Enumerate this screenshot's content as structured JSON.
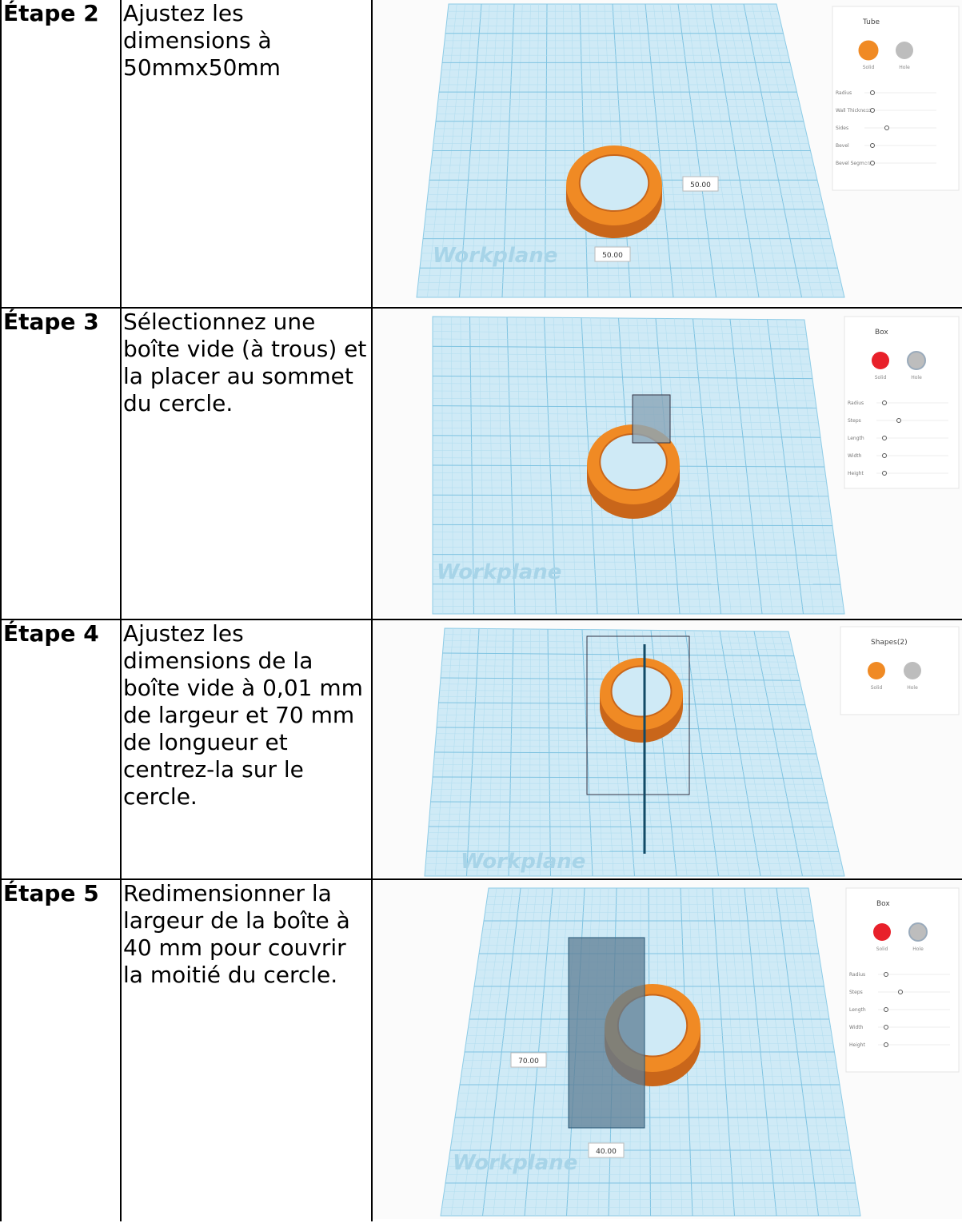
{
  "table": {
    "rows": [
      {
        "step": "Étape 2",
        "instruction": "Ajustez les dimensions à 50mmx50mm",
        "screenshot": {
          "panel_title": "Tube",
          "mode_labels": [
            "Solid",
            "Hole"
          ],
          "properties": [
            "Radius",
            "Wall Thickness",
            "Sides",
            "Bevel",
            "Bevel Segments"
          ],
          "dimensions": [
            "50.00",
            "50.00"
          ],
          "workplane": "Workplane"
        }
      },
      {
        "step": "Étape 3",
        "instruction": "Sélectionnez une boîte vide (à trous) et la placer au sommet du cercle.",
        "screenshot": {
          "panel_title": "Box",
          "mode_labels": [
            "Solid",
            "Hole"
          ],
          "properties": [
            "Radius",
            "Steps",
            "Length",
            "Width",
            "Height"
          ],
          "dimensions": [],
          "workplane": "Workplane"
        }
      },
      {
        "step": "Étape 4",
        "instruction": "Ajustez les dimensions de la boîte vide à 0,01 mm de largeur et 70 mm de longueur et centrez-la sur le cercle.",
        "screenshot": {
          "panel_title": "Shapes(2)",
          "mode_labels": [
            "Solid",
            "Hole"
          ],
          "properties": [],
          "dimensions": [],
          "workplane": "Workplane"
        }
      },
      {
        "step": "Étape 5",
        "instruction": "Redimensionner la largeur de la boîte à 40 mm pour couvrir la moitié du cercle.",
        "screenshot": {
          "panel_title": "Box",
          "mode_labels": [
            "Solid",
            "Hole"
          ],
          "properties": [
            "Radius",
            "Steps",
            "Length",
            "Width",
            "Height"
          ],
          "dimensions": [
            "70.00",
            "40.00"
          ],
          "workplane": "Workplane"
        }
      }
    ]
  }
}
